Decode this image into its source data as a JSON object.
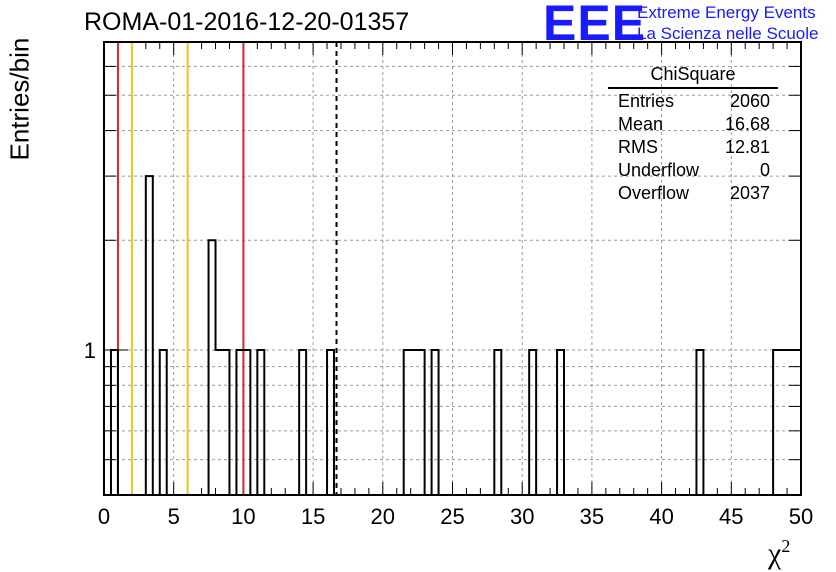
{
  "header": {
    "title": "ROMA-01-2016-12-20-01357",
    "logo_mark": "EEE",
    "logo_line1": "Extreme Energy Events",
    "logo_line2": "La Scienza nelle Scuole"
  },
  "colors": {
    "red": "#dd2222",
    "yellow": "#f2c01c",
    "logo_blue": "#1a1aff"
  },
  "stats_box": {
    "title": "ChiSquare",
    "rows": [
      {
        "label": "Entries",
        "value": "2060"
      },
      {
        "label": "Mean",
        "value": "16.68"
      },
      {
        "label": "RMS",
        "value": "12.81"
      },
      {
        "label": "Underflow",
        "value": "0"
      },
      {
        "label": "Overflow",
        "value": "2037"
      }
    ]
  },
  "chart_data": {
    "type": "histogram",
    "title": "ROMA-01-2016-12-20-01357",
    "xlabel": "χ",
    "xlabel_sup": "2",
    "ylabel": "Entries/bin",
    "xlim": [
      0,
      50
    ],
    "ylim_log": [
      0.4,
      7
    ],
    "y_scale": "log",
    "grid": true,
    "bin_width": 0.5,
    "x_ticks": [
      0,
      5,
      10,
      15,
      20,
      25,
      30,
      35,
      40,
      45,
      50
    ],
    "y_tick_labels": [
      {
        "value": 1,
        "label": "1"
      }
    ],
    "bins": [
      {
        "x0": 0.5,
        "x1": 1.0,
        "count": 1
      },
      {
        "x0": 3.0,
        "x1": 3.5,
        "count": 3
      },
      {
        "x0": 4.0,
        "x1": 4.5,
        "count": 1
      },
      {
        "x0": 7.5,
        "x1": 8.0,
        "count": 2
      },
      {
        "x0": 8.0,
        "x1": 9.0,
        "count": 1
      },
      {
        "x0": 9.5,
        "x1": 10.5,
        "count": 1
      },
      {
        "x0": 11.0,
        "x1": 11.5,
        "count": 1
      },
      {
        "x0": 14.0,
        "x1": 14.5,
        "count": 1
      },
      {
        "x0": 16.0,
        "x1": 16.5,
        "count": 1
      },
      {
        "x0": 21.5,
        "x1": 23.0,
        "count": 1
      },
      {
        "x0": 23.5,
        "x1": 24.0,
        "count": 1
      },
      {
        "x0": 28.0,
        "x1": 28.5,
        "count": 1
      },
      {
        "x0": 30.5,
        "x1": 31.0,
        "count": 1
      },
      {
        "x0": 32.5,
        "x1": 33.0,
        "count": 1
      },
      {
        "x0": 42.5,
        "x1": 43.0,
        "count": 1
      },
      {
        "x0": 48.0,
        "x1": 50.0,
        "count": 1
      }
    ],
    "vertical_lines": [
      {
        "x": 1,
        "color": "red"
      },
      {
        "x": 2,
        "color": "yellow"
      },
      {
        "x": 6,
        "color": "yellow"
      },
      {
        "x": 10,
        "color": "red"
      },
      {
        "x": 16.68,
        "color": "black",
        "style": "dashed"
      }
    ]
  }
}
